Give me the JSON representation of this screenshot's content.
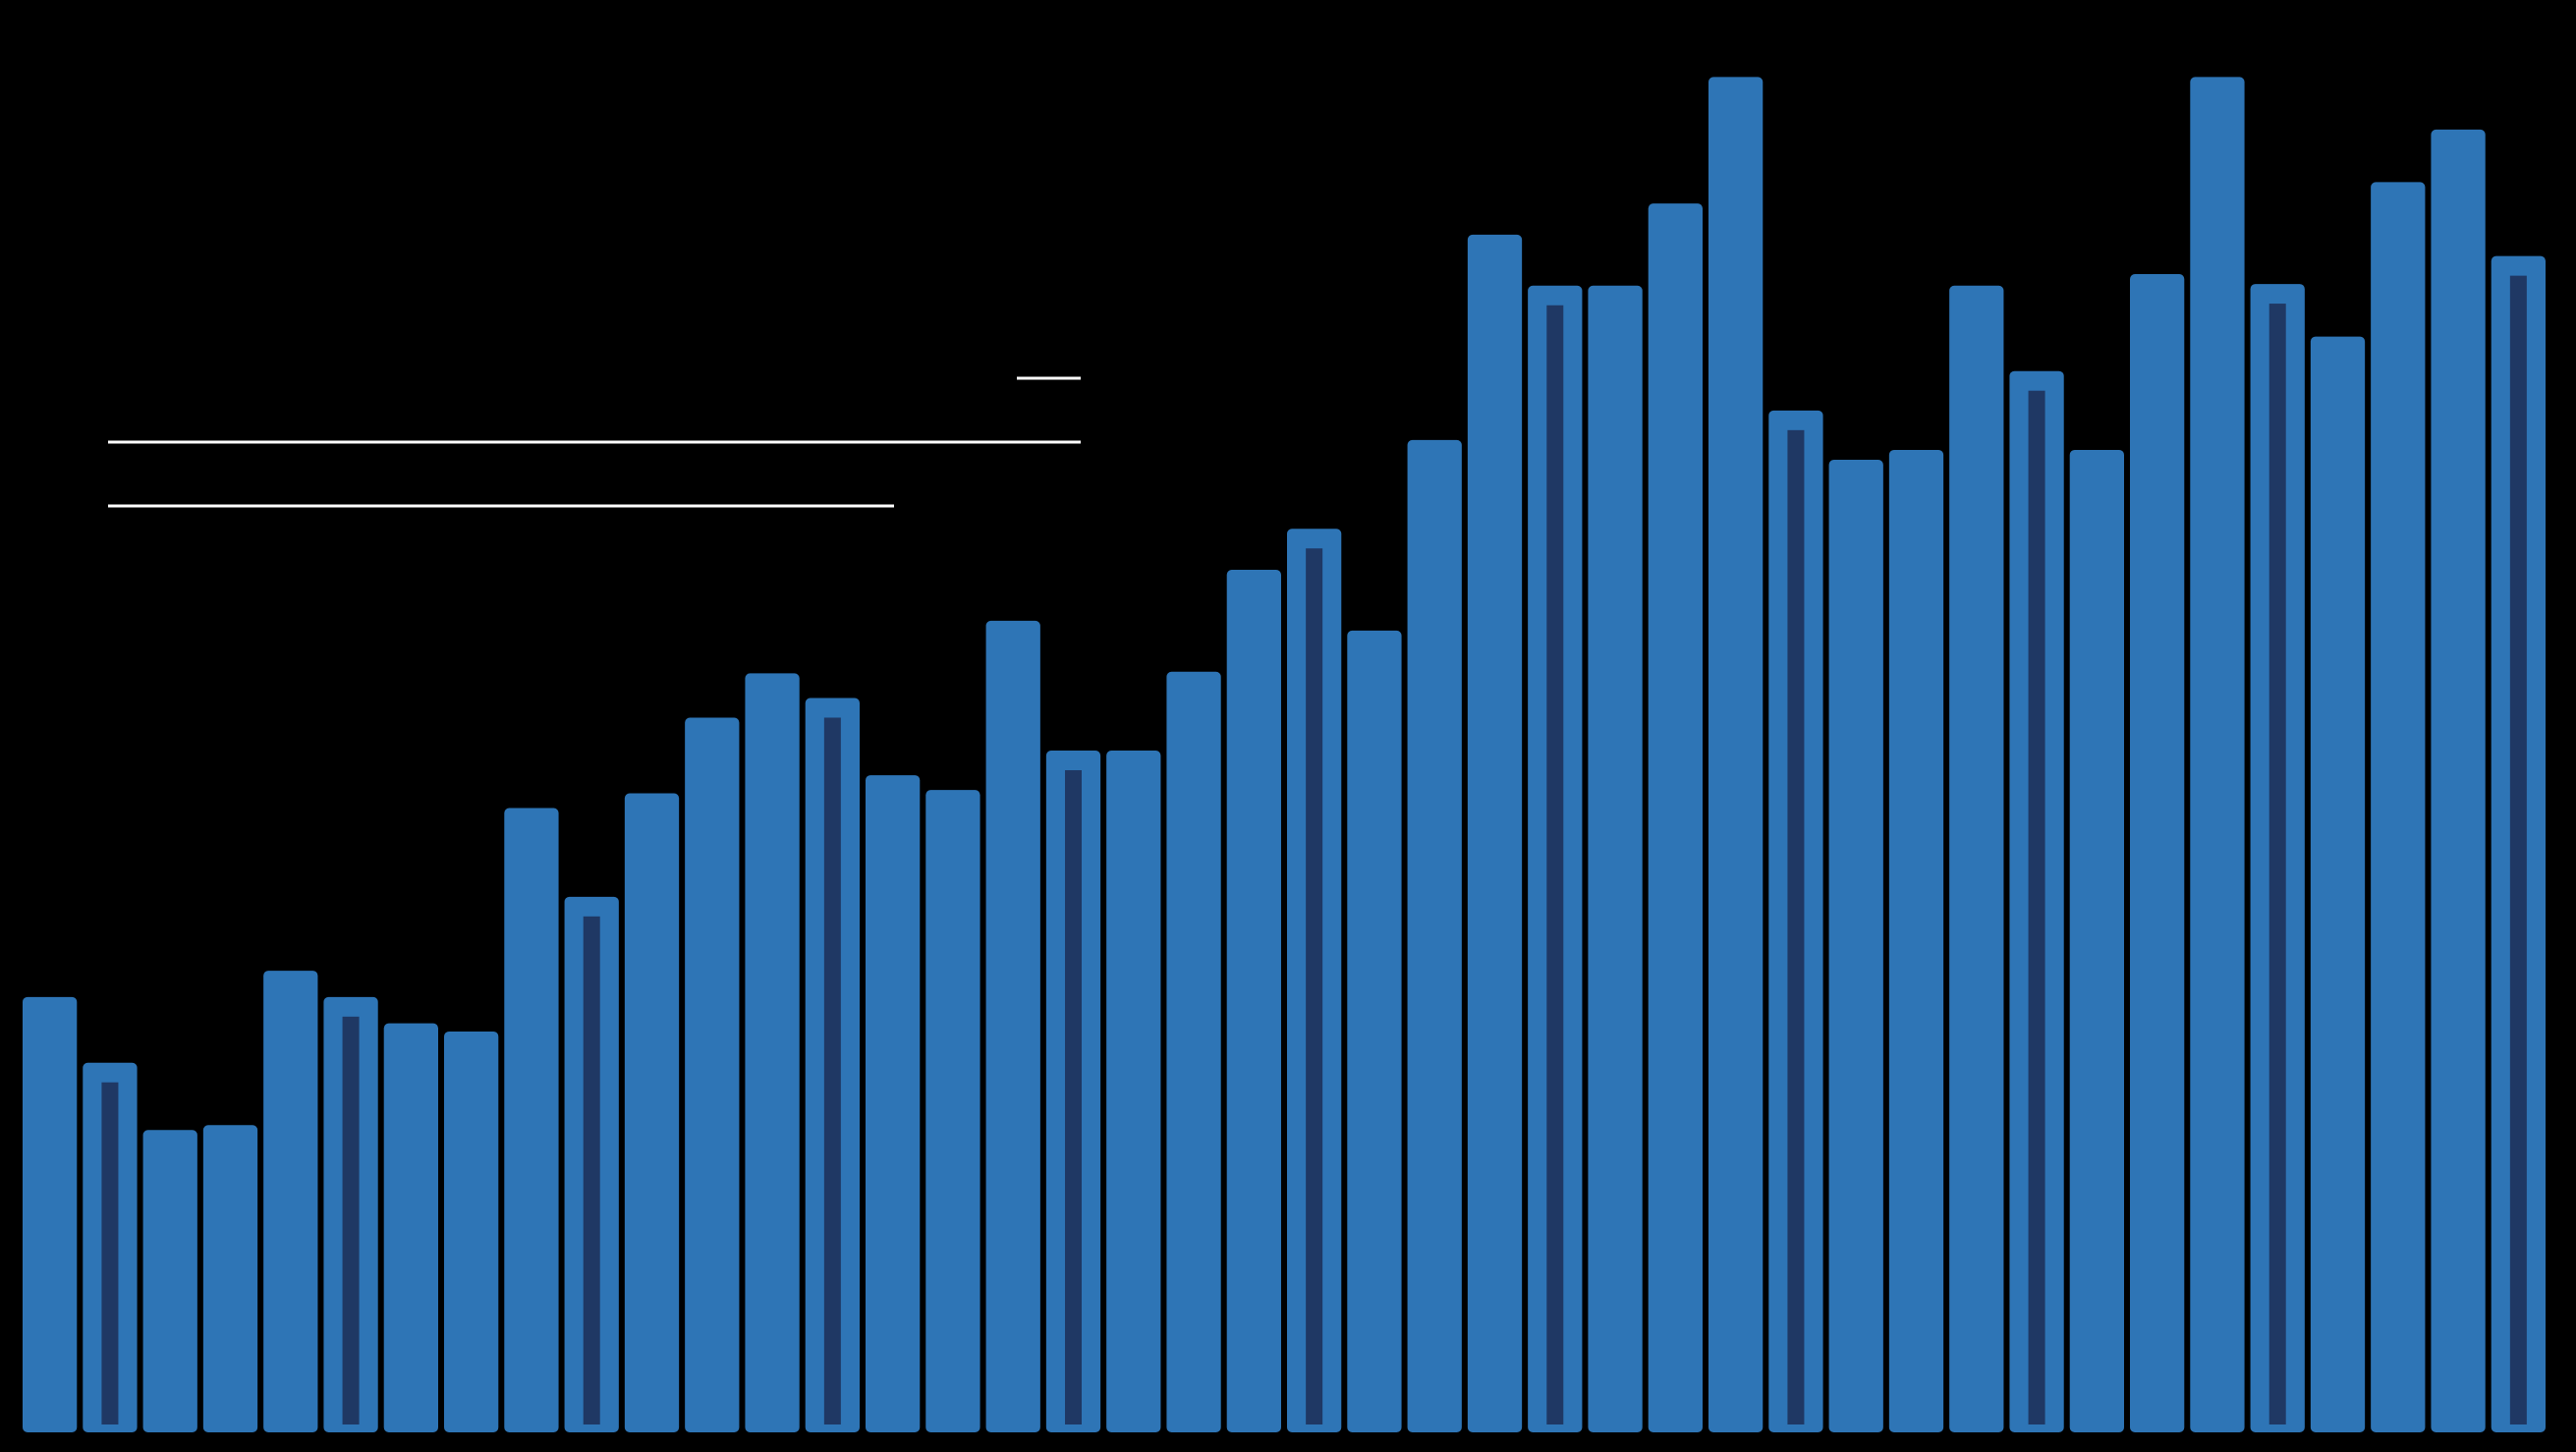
{
  "chart_data": {
    "type": "bar",
    "values": [
      265,
      225,
      184,
      187,
      281,
      265,
      249,
      244,
      380,
      326,
      389,
      435,
      462,
      447,
      400,
      391,
      494,
      415,
      415,
      463,
      525,
      550,
      488,
      604,
      729,
      698,
      698,
      748,
      825,
      622,
      592,
      598,
      698,
      646,
      598,
      705,
      825,
      699,
      667,
      761,
      793,
      716
    ],
    "color": "#2e75b6",
    "highlight": [
      1,
      5,
      9,
      13,
      17,
      21,
      25,
      29,
      33,
      37,
      41
    ],
    "highlight_color": "#1f3864",
    "ylim": [
      0,
      830
    ]
  }
}
